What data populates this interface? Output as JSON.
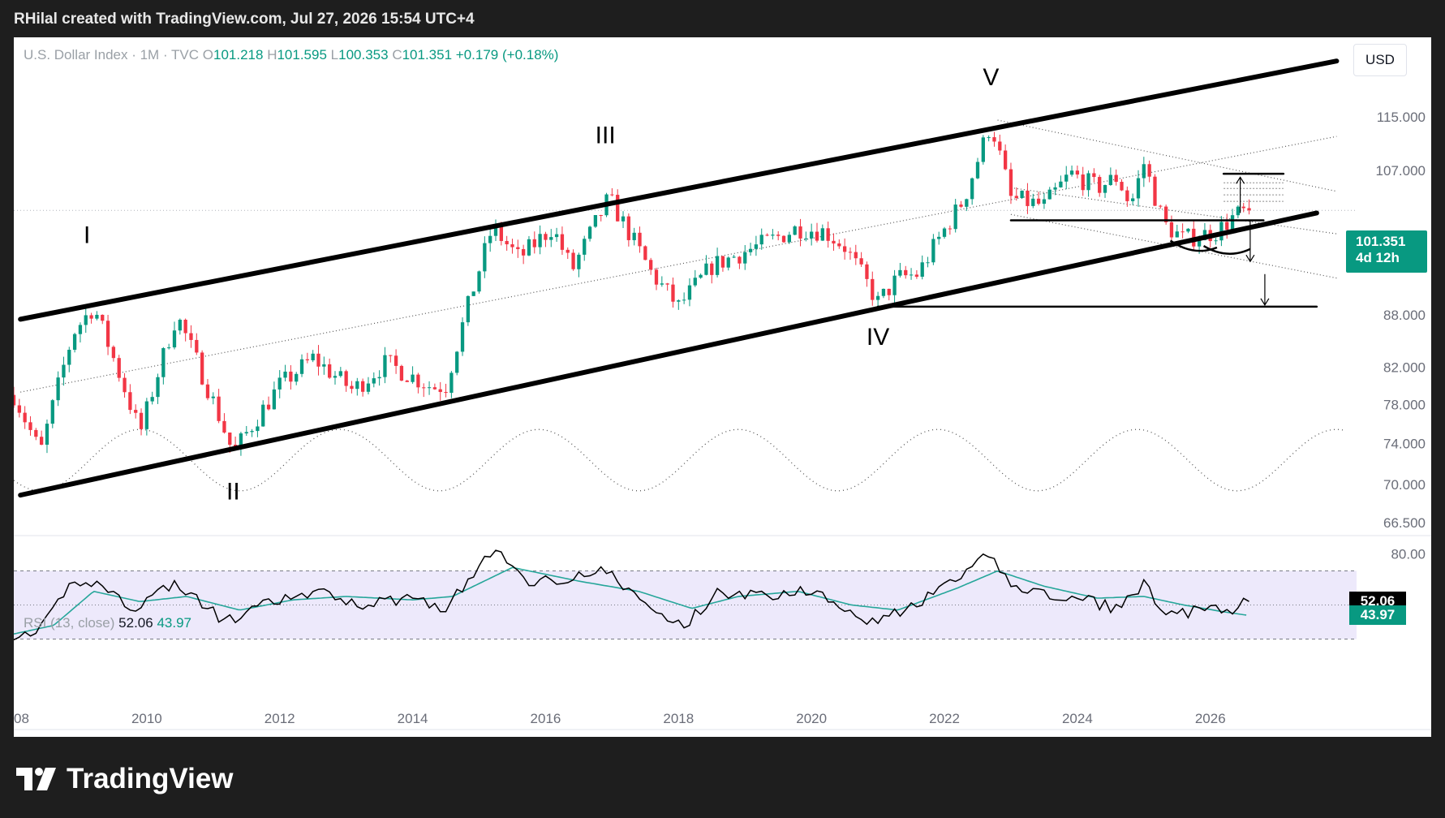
{
  "header": {
    "author_line": "RHilal created with TradingView.com, Jul 27, 2026 15:54 UTC+4"
  },
  "legend": {
    "symbol": "U.S. Dollar Index · 1M · TVC",
    "open_label": "O",
    "open": "101.218",
    "high_label": "H",
    "high": "101.595",
    "low_label": "L",
    "low": "100.353",
    "close_label": "C",
    "close": "101.351",
    "change": "+0.179 (+0.18%)"
  },
  "currency_button": "USD",
  "price_tag": {
    "price": "101.351",
    "countdown": "4d 12h"
  },
  "rsi": {
    "label": "RSI (13, close)",
    "value": "52.06",
    "ma_value": "43.97"
  },
  "footer": {
    "brand": "TradingView"
  },
  "colors": {
    "up": "#089981",
    "down": "#f23645",
    "rsi_band": "#ede9fb",
    "rsi_ma": "#26a69a"
  },
  "chart_data": {
    "type": "candlestick",
    "symbol": "U.S. Dollar Index",
    "interval": "1M",
    "log_scale": true,
    "price_ticks": [
      115.0,
      107.0,
      94.0,
      88.0,
      82.0,
      78.0,
      74.0,
      70.0,
      66.5
    ],
    "price_tick_labels": [
      "115.000",
      "107.000",
      "94.000",
      "88.000",
      "82.000",
      "78.000",
      "74.000",
      "70.000",
      "66.500"
    ],
    "x_tick_labels": [
      "2008",
      "2010",
      "2012",
      "2014",
      "2016",
      "2018",
      "2020",
      "2022",
      "2024",
      "2026"
    ],
    "x_ticks": [
      2008,
      2010,
      2012,
      2014,
      2016,
      2018,
      2020,
      2022,
      2024,
      2026
    ],
    "x_range": [
      2008.0,
      2028.2
    ],
    "rsi_ticks": [
      80.0
    ],
    "rsi_tick_labels": [
      "80.00"
    ],
    "rsi_band": [
      30,
      70
    ],
    "rsi_range": [
      25,
      85
    ],
    "anchors": [
      [
        2008.0,
        79.0
      ],
      [
        2008.4,
        73.0
      ],
      [
        2008.9,
        86.0
      ],
      [
        2009.2,
        89.0
      ],
      [
        2009.9,
        75.0
      ],
      [
        2010.45,
        88.0
      ],
      [
        2011.3,
        73.0
      ],
      [
        2012.0,
        80.0
      ],
      [
        2012.5,
        83.0
      ],
      [
        2013.1,
        79.5
      ],
      [
        2013.6,
        82.5
      ],
      [
        2014.3,
        79.8
      ],
      [
        2014.5,
        80.0
      ],
      [
        2015.2,
        99.0
      ],
      [
        2015.6,
        95.0
      ],
      [
        2016.1,
        99.0
      ],
      [
        2016.4,
        93.5
      ],
      [
        2016.95,
        103.0
      ],
      [
        2017.6,
        93.0
      ],
      [
        2018.0,
        89.0
      ],
      [
        2018.5,
        94.0
      ],
      [
        2019.3,
        97.0
      ],
      [
        2019.8,
        99.0
      ],
      [
        2020.2,
        98.5
      ],
      [
        2020.5,
        96.5
      ],
      [
        2021.0,
        89.5
      ],
      [
        2021.3,
        92.5
      ],
      [
        2021.6,
        93.0
      ],
      [
        2022.3,
        103.0
      ],
      [
        2022.7,
        114.0
      ],
      [
        2023.0,
        103.0
      ],
      [
        2023.5,
        102.0
      ],
      [
        2023.9,
        106.5
      ],
      [
        2024.3,
        104.5
      ],
      [
        2024.6,
        106.0
      ],
      [
        2024.8,
        102.0
      ],
      [
        2025.0,
        108.0
      ],
      [
        2025.3,
        99.5
      ],
      [
        2025.6,
        97.5
      ],
      [
        2026.1,
        98.5
      ],
      [
        2026.35,
        100.5
      ],
      [
        2026.56,
        101.351
      ]
    ],
    "rsi_anchors": [
      [
        2008.0,
        33
      ],
      [
        2008.3,
        29
      ],
      [
        2008.9,
        65
      ],
      [
        2009.3,
        62
      ],
      [
        2009.8,
        48
      ],
      [
        2010.4,
        63
      ],
      [
        2011.2,
        40
      ],
      [
        2011.9,
        52
      ],
      [
        2012.6,
        57
      ],
      [
        2013.3,
        50
      ],
      [
        2014.0,
        55
      ],
      [
        2014.5,
        48
      ],
      [
        2015.2,
        82
      ],
      [
        2015.8,
        63
      ],
      [
        2016.9,
        70
      ],
      [
        2017.7,
        44
      ],
      [
        2018.1,
        38
      ],
      [
        2018.6,
        58
      ],
      [
        2019.2,
        55
      ],
      [
        2019.9,
        59
      ],
      [
        2020.4,
        52
      ],
      [
        2020.9,
        40
      ],
      [
        2021.5,
        48
      ],
      [
        2022.3,
        68
      ],
      [
        2022.7,
        80
      ],
      [
        2023.0,
        62
      ],
      [
        2023.6,
        55
      ],
      [
        2024.2,
        52
      ],
      [
        2024.6,
        48
      ],
      [
        2025.0,
        62
      ],
      [
        2025.4,
        43
      ],
      [
        2025.9,
        48
      ],
      [
        2026.3,
        45
      ],
      [
        2026.56,
        52.06
      ]
    ],
    "rsi_ma_anchors": [
      [
        2008.0,
        33
      ],
      [
        2008.6,
        38
      ],
      [
        2009.2,
        58
      ],
      [
        2009.9,
        52
      ],
      [
        2010.6,
        55
      ],
      [
        2011.4,
        47
      ],
      [
        2012.2,
        53
      ],
      [
        2013.0,
        55
      ],
      [
        2014.0,
        53
      ],
      [
        2014.6,
        55
      ],
      [
        2015.5,
        72
      ],
      [
        2016.5,
        64
      ],
      [
        2017.4,
        58
      ],
      [
        2018.2,
        48
      ],
      [
        2018.9,
        55
      ],
      [
        2019.8,
        58
      ],
      [
        2020.6,
        50
      ],
      [
        2021.3,
        47
      ],
      [
        2022.2,
        60
      ],
      [
        2022.8,
        70
      ],
      [
        2023.5,
        61
      ],
      [
        2024.3,
        54
      ],
      [
        2025.0,
        55
      ],
      [
        2025.6,
        50
      ],
      [
        2026.2,
        46
      ],
      [
        2026.56,
        43.97
      ]
    ],
    "annotations": [
      {
        "text": "I",
        "x": 2009.1,
        "y": 97.0
      },
      {
        "text": "II",
        "x": 2011.3,
        "y": 68.6
      },
      {
        "text": "III",
        "x": 2016.9,
        "y": 111.0
      },
      {
        "text": "IV",
        "x": 2021.0,
        "y": 84.5
      },
      {
        "text": "V",
        "x": 2022.7,
        "y": 120.0
      }
    ],
    "trendlines": [
      {
        "from": [
          2008.1,
          87.5
        ],
        "to": [
          2027.9,
          124.0
        ],
        "width": 6
      },
      {
        "from": [
          2008.1,
          69.0
        ],
        "to": [
          2027.6,
          101.0
        ],
        "width": 6
      },
      {
        "from": [
          2021.0,
          89.0
        ],
        "to": [
          2027.6,
          89.0
        ],
        "width": 2.5
      },
      {
        "from": [
          2023.0,
          100.0
        ],
        "to": [
          2026.8,
          100.0
        ],
        "width": 2.5
      },
      {
        "from": [
          2026.2,
          106.5
        ],
        "to": [
          2027.1,
          106.5
        ],
        "width": 2.5
      }
    ]
  }
}
